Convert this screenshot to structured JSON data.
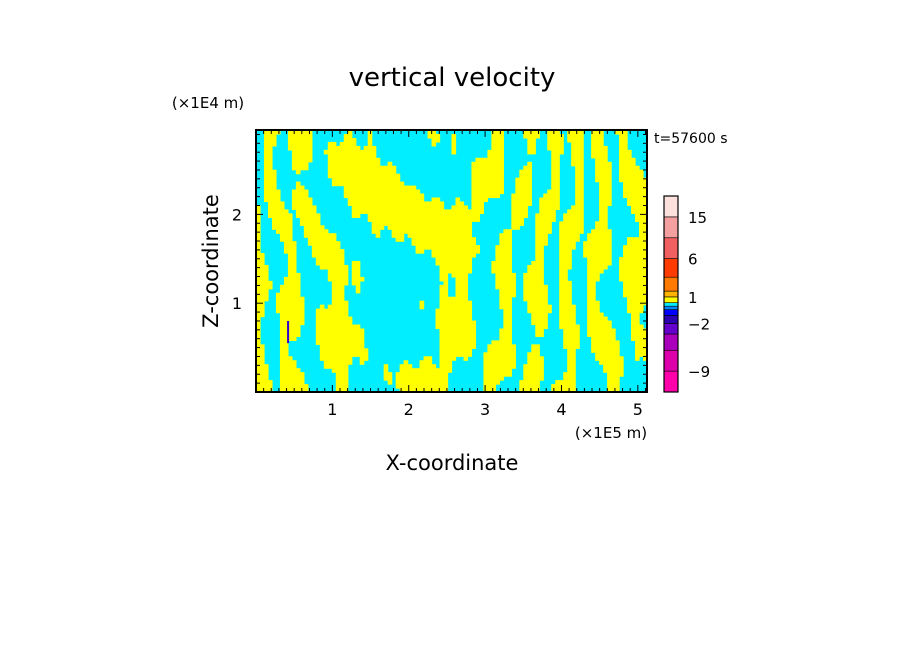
{
  "chart_data": {
    "type": "heatmap",
    "title": "vertical velocity",
    "xlabel": "X-coordinate",
    "ylabel": "Z-coordinate",
    "x_unit": "(×1E5 m)",
    "y_unit": "(×1E4 m)",
    "time_label": "t=57600 s",
    "xlim": [
      0,
      5.12
    ],
    "ylim": [
      0,
      2.95
    ],
    "x_ticks": [
      1,
      2,
      3,
      4,
      5
    ],
    "x_tick_labels": [
      "1",
      "2",
      "3",
      "4",
      "5"
    ],
    "y_ticks": [
      1,
      2
    ],
    "y_tick_labels": [
      "1",
      "2"
    ],
    "field": {
      "description": "alternating updraft/downdraft bands of vertical velocity",
      "positive_color": "#ffff00",
      "negative_color": "#00eeff",
      "updraft_marker_x": 0.42,
      "updraft_marker_z": [
        0.55,
        0.8
      ]
    },
    "colorbar": {
      "levels": [
        -12,
        -9,
        -6,
        -4,
        -2,
        -1,
        -0.5,
        0,
        0.5,
        1,
        2,
        4,
        6,
        10,
        15,
        20
      ],
      "labels": [
        "15",
        "6",
        "1",
        "−2",
        "−9"
      ],
      "label_values": [
        15,
        6,
        1,
        -2,
        -9
      ],
      "colors": [
        "#ff00aa",
        "#dd00aa",
        "#aa00bb",
        "#6600cc",
        "#2a00b0",
        "#0000ff",
        "#0088ff",
        "#00eeff",
        "#ffff00",
        "#ffb400",
        "#ff7a00",
        "#ff3c00",
        "#f06060",
        "#f4a0a0",
        "#fbe0dc"
      ]
    }
  }
}
